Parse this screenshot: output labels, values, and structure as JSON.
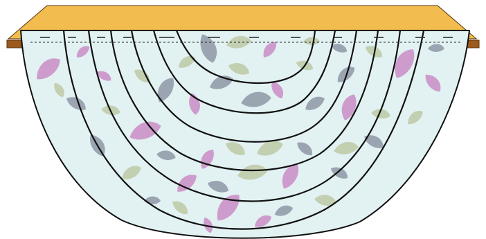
{
  "illustration": {
    "subject": "swag-valance-drape-over-board",
    "swag_folds": 6
  },
  "colors": {
    "board_top": "#F2BC4E",
    "board_front": "#9C5A1C",
    "board_outline": "#5A3512",
    "fabric": "#E2F1F2",
    "fold_line": "#111111",
    "stitch_line": "#222222",
    "leaf_purple": "#C98DC5",
    "leaf_slate": "#8E98A6",
    "leaf_sage": "#BDC9A6"
  }
}
